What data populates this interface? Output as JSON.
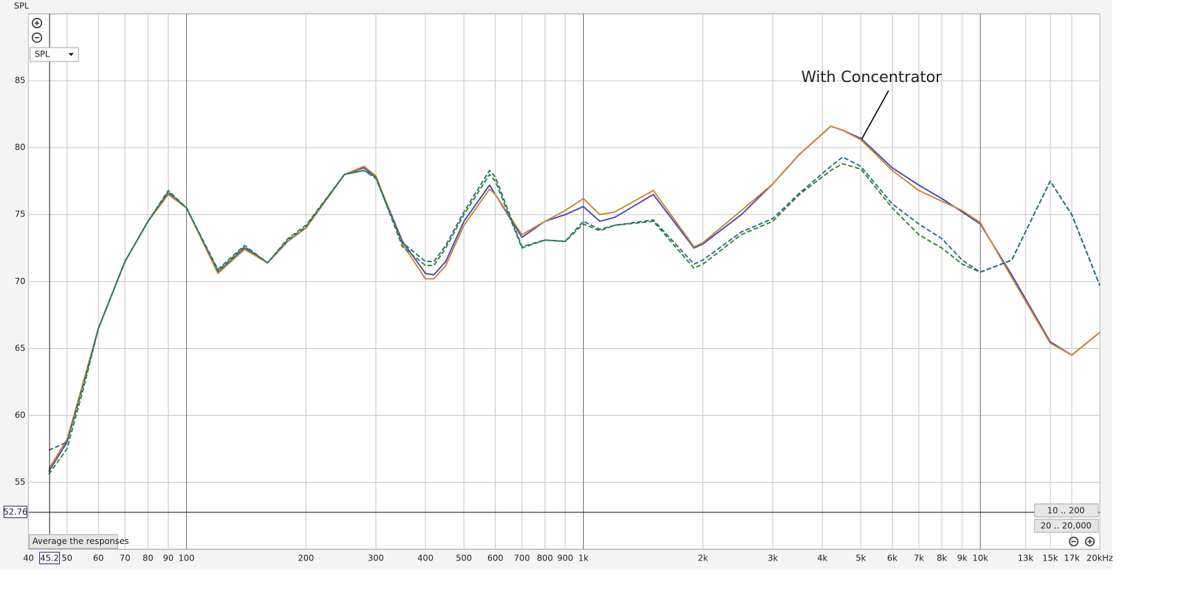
{
  "chart_data": {
    "type": "line",
    "ylabel": "SPL",
    "annotation": "With Concentrator",
    "selector": "SPL",
    "buttons": [
      "Average the responses",
      "10 .. 200",
      "20 .. 20,000"
    ],
    "cursor": {
      "x": 45.2,
      "y": 52.76
    },
    "log_x": true,
    "grid": true,
    "xlim": [
      40,
      20000
    ],
    "ylim": [
      50,
      90
    ],
    "yticks": [
      55,
      60,
      65,
      70,
      75,
      80,
      85
    ],
    "xticks": [
      40,
      50,
      60,
      70,
      80,
      90,
      100,
      200,
      300,
      400,
      500,
      600,
      700,
      800,
      900,
      {
        "value": 1000,
        "label": "1k"
      },
      {
        "value": 2000,
        "label": "2k"
      },
      {
        "value": 3000,
        "label": "3k"
      },
      {
        "value": 4000,
        "label": "4k"
      },
      {
        "value": 5000,
        "label": "5k"
      },
      {
        "value": 6000,
        "label": "6k"
      },
      {
        "value": 7000,
        "label": "7k"
      },
      {
        "value": 8000,
        "label": "8k"
      },
      {
        "value": 9000,
        "label": "9k"
      },
      {
        "value": 10000,
        "label": "10k"
      },
      {
        "value": 13000,
        "label": "13k"
      },
      {
        "value": 15000,
        "label": "15k"
      },
      {
        "value": 17000,
        "label": "17k"
      },
      {
        "value": 20000,
        "label": "20kHz"
      }
    ],
    "x": [
      45,
      50,
      55,
      60,
      70,
      80,
      90,
      100,
      120,
      140,
      160,
      180,
      200,
      250,
      280,
      300,
      350,
      400,
      420,
      450,
      500,
      580,
      600,
      700,
      800,
      900,
      1000,
      1100,
      1200,
      1500,
      1900,
      2000,
      2500,
      3000,
      3500,
      4200,
      4500,
      5000,
      6000,
      7000,
      8000,
      9000,
      10000,
      12000,
      15000,
      17000,
      20000
    ],
    "series": [
      {
        "color": "#4848c0",
        "dashed": false,
        "values": [
          55.8,
          58,
          62.5,
          66.5,
          71.5,
          74.5,
          76.6,
          75.5,
          70.7,
          72.5,
          71.4,
          73,
          74,
          78,
          78.5,
          77.8,
          73,
          70.6,
          70.5,
          71.5,
          74.5,
          77.2,
          76.5,
          73.3,
          74.5,
          75,
          75.6,
          74.5,
          74.8,
          76.5,
          72.5,
          72.8,
          75,
          77.3,
          79.5,
          81.6,
          81.3,
          80.7,
          78.5,
          77.2,
          76.2,
          75.2,
          74.3,
          70.5,
          65.5,
          64.5,
          66.2
        ]
      },
      {
        "color": "#d4832a",
        "dashed": false,
        "values": [
          56,
          58.2,
          62.5,
          66.5,
          71.5,
          74.5,
          76.5,
          75.5,
          70.6,
          72.4,
          71.4,
          73,
          74,
          78,
          78.6,
          77.9,
          72.8,
          70.2,
          70.2,
          71.2,
          74.2,
          76.9,
          76.5,
          73.5,
          74.5,
          75.3,
          76.2,
          75,
          75.2,
          76.8,
          72.6,
          72.9,
          75.3,
          77.3,
          79.5,
          81.6,
          81.3,
          80.6,
          78.3,
          76.8,
          76,
          75.3,
          74.4,
          70.3,
          65.4,
          64.5,
          66.2
        ]
      },
      {
        "color": "#2a8a2a",
        "dashed": true,
        "values": [
          55.6,
          57.5,
          62,
          66.5,
          71.5,
          74.5,
          76.7,
          75.5,
          70.8,
          72.6,
          71.4,
          73.2,
          74.2,
          78,
          78.3,
          77.8,
          72.6,
          71.2,
          71.2,
          72.5,
          75,
          78,
          77.5,
          72.5,
          73.1,
          73,
          74.3,
          73.8,
          74.2,
          74.5,
          71,
          71.3,
          73.5,
          74.5,
          76.5,
          78.3,
          78.8,
          78.4,
          75.5,
          73.5,
          72.5,
          71.3,
          70.7,
          71.6,
          77.5,
          75,
          69.7
        ]
      },
      {
        "color": "#1f6e8c",
        "dashed": true,
        "values": [
          57.4,
          58,
          62.3,
          66.5,
          71.5,
          74.5,
          76.8,
          75.5,
          70.9,
          72.7,
          71.4,
          73.1,
          74.1,
          78,
          78.3,
          77.7,
          72.9,
          71.5,
          71.5,
          72.7,
          75.2,
          78.3,
          77.8,
          72.6,
          73.1,
          73,
          74.5,
          73.9,
          74.2,
          74.6,
          71.3,
          71.6,
          73.7,
          74.7,
          76.6,
          78.6,
          79.3,
          78.6,
          75.8,
          74.3,
          73.2,
          71.6,
          70.7,
          71.6,
          77.5,
          75,
          69.7
        ]
      }
    ]
  }
}
